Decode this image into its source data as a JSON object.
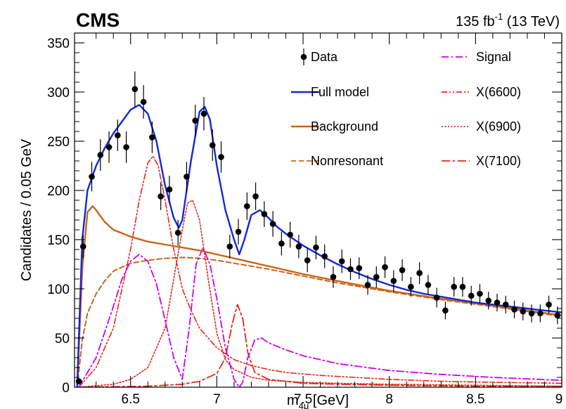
{
  "header": {
    "experiment": "CMS",
    "lumi_value": "135 fb",
    "lumi_exp": "-1",
    "energy": " (13 TeV)"
  },
  "chart_data": {
    "type": "scatter",
    "xlabel_main": "m",
    "xlabel_sub": "4μ",
    "xlabel_unit": " [GeV]",
    "ylabel": "Candidates / 0.05 GeV",
    "xlim": [
      6.175,
      9.0
    ],
    "ylim": [
      0,
      360
    ],
    "x_ticks": [
      6.5,
      7,
      7.5,
      8,
      8.5,
      9
    ],
    "x_tick_labels": [
      "6.5",
      "7",
      "7.5",
      "8",
      "8.5",
      "9"
    ],
    "y_ticks": [
      0,
      50,
      100,
      150,
      200,
      250,
      300,
      350
    ],
    "y_tick_labels": [
      "0",
      "50",
      "100",
      "150",
      "200",
      "250",
      "300",
      "350"
    ],
    "legend": [
      {
        "label": "Data",
        "kind": "marker",
        "color": "#000000"
      },
      {
        "label": "Full model",
        "kind": "solid",
        "color": "#1428d6"
      },
      {
        "label": "Background",
        "kind": "solid",
        "color": "#c8651b"
      },
      {
        "label": "Nonresonant",
        "kind": "dash",
        "color": "#c8651b"
      },
      {
        "label": "Signal",
        "kind": "dashdot",
        "color": "#cc00ee"
      },
      {
        "label": "X(6600)",
        "kind": "dashdotdot",
        "color": "#e3281c"
      },
      {
        "label": "X(6900)",
        "kind": "dot",
        "color": "#e3281c"
      },
      {
        "label": "X(7100)",
        "kind": "longdashdot",
        "color": "#e3281c"
      }
    ],
    "data": {
      "x": [
        6.2,
        6.225,
        6.275,
        6.325,
        6.375,
        6.425,
        6.475,
        6.525,
        6.575,
        6.625,
        6.675,
        6.725,
        6.775,
        6.825,
        6.875,
        6.925,
        6.975,
        7.025,
        7.075,
        7.125,
        7.175,
        7.225,
        7.275,
        7.325,
        7.375,
        7.425,
        7.475,
        7.525,
        7.575,
        7.625,
        7.675,
        7.725,
        7.775,
        7.825,
        7.875,
        7.925,
        7.975,
        8.025,
        8.075,
        8.125,
        8.175,
        8.225,
        8.275,
        8.325,
        8.375,
        8.425,
        8.475,
        8.525,
        8.575,
        8.625,
        8.675,
        8.725,
        8.775,
        8.825,
        8.875,
        8.925,
        8.975
      ],
      "y": [
        6,
        143,
        214,
        236,
        244,
        256,
        244,
        303,
        290,
        254,
        194,
        201,
        157,
        214,
        271,
        278,
        246,
        234,
        143,
        158,
        184,
        194,
        176,
        166,
        146,
        155,
        143,
        129,
        142,
        133,
        112,
        128,
        120,
        121,
        104,
        112,
        122,
        108,
        119,
        102,
        116,
        104,
        91,
        78,
        102,
        102,
        93,
        95,
        88,
        86,
        84,
        79,
        77,
        75,
        75,
        84,
        73
      ],
      "yerr": [
        3,
        12,
        15,
        16,
        16,
        16,
        16,
        18,
        17,
        16,
        14,
        14,
        13,
        15,
        16,
        17,
        16,
        16,
        12,
        13,
        14,
        14,
        13,
        13,
        12,
        13,
        12,
        12,
        12,
        12,
        11,
        12,
        11,
        11,
        10,
        11,
        11,
        11,
        11,
        10,
        11,
        10,
        10,
        9,
        10,
        10,
        10,
        10,
        9,
        9,
        9,
        9,
        9,
        9,
        9,
        9,
        9
      ]
    },
    "full_model": {
      "x": [
        6.19,
        6.22,
        6.25,
        6.3,
        6.35,
        6.4,
        6.45,
        6.5,
        6.55,
        6.6,
        6.65,
        6.7,
        6.75,
        6.78,
        6.8,
        6.85,
        6.9,
        6.93,
        6.96,
        7.0,
        7.05,
        7.1,
        7.13,
        7.16,
        7.2,
        7.25,
        7.3,
        7.35,
        7.4,
        7.5,
        7.6,
        7.7,
        7.8,
        7.9,
        8.0,
        8.1,
        8.2,
        8.3,
        8.4,
        8.5,
        8.6,
        8.7,
        8.8,
        8.9,
        9.0
      ],
      "y": [
        0,
        150,
        200,
        225,
        243,
        258,
        270,
        282,
        287,
        278,
        250,
        205,
        172,
        162,
        170,
        230,
        280,
        285,
        272,
        225,
        180,
        150,
        135,
        150,
        175,
        180,
        172,
        163,
        156,
        144,
        134,
        125,
        117,
        110,
        104,
        99,
        95,
        92,
        89,
        86,
        84,
        82,
        80,
        78,
        76
      ]
    },
    "background": {
      "x": [
        6.19,
        6.22,
        6.25,
        6.28,
        6.3,
        6.35,
        6.4,
        6.5,
        6.6,
        6.7,
        6.8,
        6.9,
        7.0,
        7.1,
        7.2,
        7.3,
        7.5,
        7.7,
        8.0,
        8.3,
        8.6,
        9.0
      ],
      "y": [
        0,
        120,
        178,
        184,
        180,
        168,
        160,
        153,
        148,
        145,
        142,
        139,
        135,
        131,
        127,
        123,
        115,
        108,
        98,
        90,
        83,
        73
      ]
    },
    "nonresonant": {
      "x": [
        6.19,
        6.22,
        6.25,
        6.3,
        6.35,
        6.4,
        6.5,
        6.6,
        6.7,
        6.8,
        6.9,
        7.0,
        7.1,
        7.2,
        7.3,
        7.5,
        7.7,
        8.0,
        8.3,
        8.6,
        9.0
      ],
      "y": [
        0,
        48,
        75,
        95,
        108,
        118,
        126,
        129,
        131,
        132,
        131,
        129,
        126,
        123,
        120,
        113,
        106,
        97,
        89,
        82,
        72
      ]
    },
    "signal": {
      "x": [
        6.2,
        6.3,
        6.4,
        6.45,
        6.5,
        6.55,
        6.6,
        6.65,
        6.7,
        6.75,
        6.8,
        6.84,
        6.88,
        6.92,
        6.96,
        7.0,
        7.05,
        7.1,
        7.13,
        7.15,
        7.18,
        7.22,
        7.26,
        7.3,
        7.4,
        7.5,
        7.7,
        8.0,
        8.3,
        8.6,
        9.0
      ],
      "y": [
        0,
        30,
        82,
        110,
        128,
        135,
        128,
        105,
        68,
        30,
        8,
        60,
        125,
        142,
        125,
        90,
        40,
        8,
        0,
        5,
        30,
        48,
        50,
        45,
        38,
        32,
        24,
        17,
        13,
        10,
        7
      ]
    },
    "x6600": {
      "x": [
        6.2,
        6.3,
        6.4,
        6.5,
        6.55,
        6.6,
        6.63,
        6.66,
        6.7,
        6.75,
        6.8,
        6.85,
        6.9,
        7.0,
        7.1,
        7.2,
        7.3,
        7.4,
        7.6,
        7.8,
        8.0,
        8.3,
        8.6,
        9.0
      ],
      "y": [
        0,
        20,
        60,
        140,
        190,
        228,
        235,
        225,
        190,
        140,
        100,
        78,
        60,
        40,
        28,
        22,
        18,
        15,
        12,
        10,
        8,
        6,
        5,
        4
      ]
    },
    "x6900": {
      "x": [
        6.2,
        6.4,
        6.5,
        6.6,
        6.7,
        6.75,
        6.8,
        6.83,
        6.86,
        6.9,
        6.95,
        7.0,
        7.05,
        7.1,
        7.2,
        7.3,
        7.5,
        7.7,
        8.0,
        8.5,
        9.0
      ],
      "y": [
        0,
        3,
        8,
        20,
        60,
        110,
        160,
        187,
        190,
        170,
        110,
        55,
        28,
        18,
        10,
        7,
        5,
        4,
        3,
        2,
        1
      ]
    },
    "x7100": {
      "x": [
        6.2,
        6.6,
        6.8,
        6.9,
        7.0,
        7.05,
        7.09,
        7.12,
        7.15,
        7.18,
        7.22,
        7.3,
        7.5,
        7.7,
        8.0,
        8.5,
        9.0
      ],
      "y": [
        0,
        1,
        3,
        6,
        14,
        30,
        65,
        84,
        70,
        35,
        15,
        8,
        4,
        3,
        2,
        1,
        1
      ]
    }
  }
}
